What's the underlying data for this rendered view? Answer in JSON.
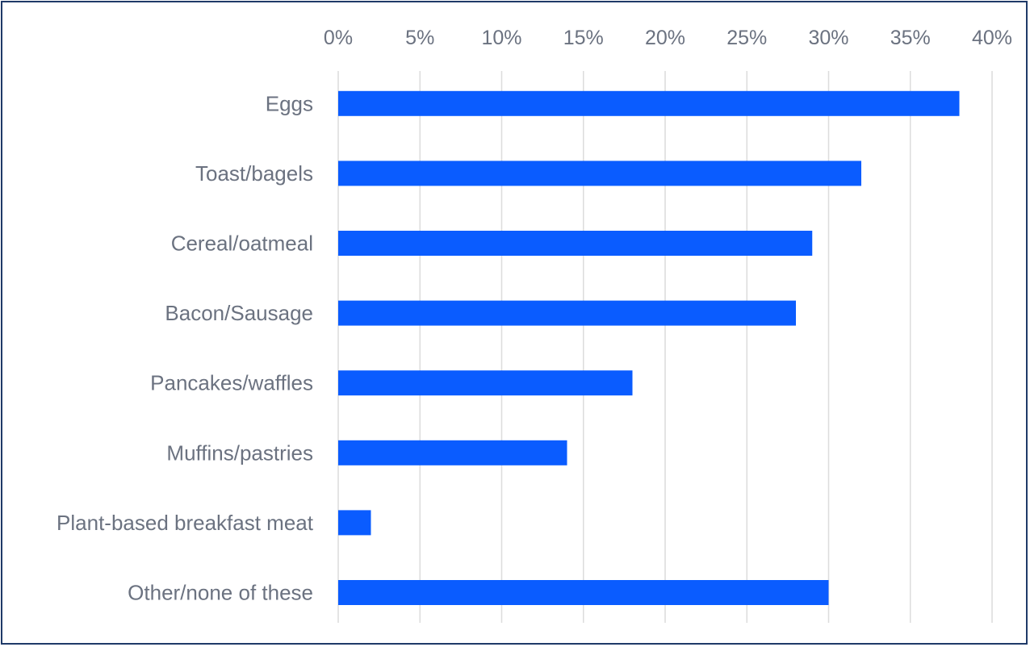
{
  "chart_data": {
    "type": "bar",
    "orientation": "horizontal",
    "categories": [
      "Eggs",
      "Toast/bagels",
      "Cereal/oatmeal",
      "Bacon/Sausage",
      "Pancakes/waffles",
      "Muffins/pastries",
      "Plant-based breakfast meat",
      "Other/none of these"
    ],
    "values": [
      38,
      32,
      29,
      28,
      18,
      14,
      2,
      30
    ],
    "value_unit": "%",
    "xlim": [
      0,
      40
    ],
    "x_ticks": [
      0,
      5,
      10,
      15,
      20,
      25,
      30,
      35,
      40
    ],
    "x_tick_labels": [
      "0%",
      "5%",
      "10%",
      "15%",
      "20%",
      "25%",
      "30%",
      "35%",
      "40%"
    ],
    "x_axis_position": "top",
    "grid": true,
    "legend": "none",
    "bar_color": "#0a5cff",
    "grid_color": "#dcdcdc",
    "label_color": "#6b7280",
    "border_color": "#1f3a68"
  }
}
